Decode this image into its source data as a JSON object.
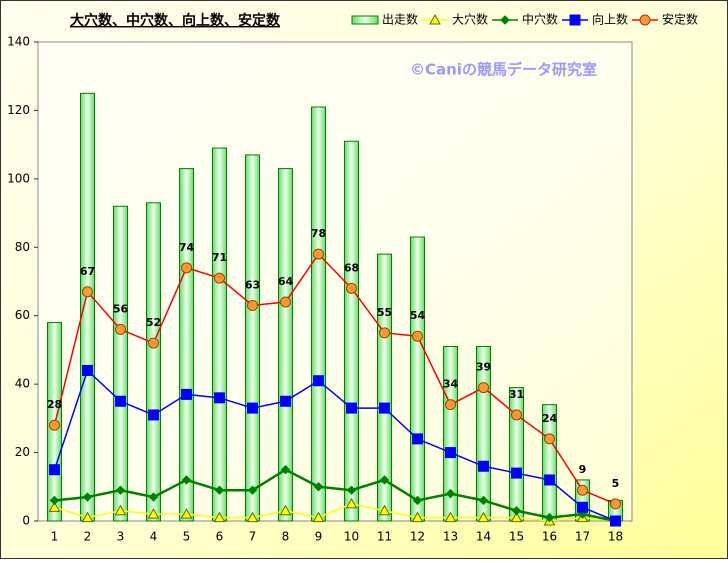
{
  "chart_data": {
    "type": "bar",
    "title": "大穴数、中穴数、向上数、安定数",
    "watermark": "©Caniの競馬データ研究室",
    "categories": [
      "1",
      "2",
      "3",
      "4",
      "5",
      "6",
      "7",
      "8",
      "9",
      "10",
      "11",
      "12",
      "13",
      "14",
      "15",
      "16",
      "17",
      "18"
    ],
    "series": [
      {
        "name": "出走数",
        "type": "bar",
        "color": "#008000",
        "values": [
          58,
          125,
          92,
          93,
          103,
          109,
          107,
          103,
          121,
          111,
          78,
          83,
          51,
          51,
          39,
          34,
          12,
          6
        ]
      },
      {
        "name": "大穴数",
        "type": "line",
        "marker": "triangle",
        "color": "#ffff00",
        "values": [
          4,
          1,
          3,
          2,
          2,
          1,
          1,
          3,
          1,
          5,
          3,
          1,
          1,
          1,
          1,
          0,
          1,
          0
        ]
      },
      {
        "name": "中穴数",
        "type": "line",
        "marker": "diamond",
        "color": "#008000",
        "values": [
          6,
          7,
          9,
          7,
          12,
          9,
          9,
          15,
          10,
          9,
          12,
          6,
          8,
          6,
          3,
          1,
          2,
          0
        ]
      },
      {
        "name": "向上数",
        "type": "line",
        "marker": "square",
        "color": "#0000ff",
        "values": [
          15,
          44,
          35,
          31,
          37,
          36,
          33,
          35,
          41,
          33,
          33,
          24,
          20,
          16,
          14,
          12,
          4,
          0
        ]
      },
      {
        "name": "安定数",
        "type": "line",
        "marker": "circle",
        "color": "#ff0000",
        "marker_color": "#ff9933",
        "data_labels": true,
        "values": [
          28,
          67,
          56,
          52,
          74,
          71,
          63,
          64,
          78,
          68,
          55,
          54,
          34,
          39,
          31,
          24,
          9,
          5
        ]
      }
    ],
    "ylim": [
      0,
      140
    ],
    "yticks": [
      0,
      20,
      40,
      60,
      80,
      100,
      120,
      140
    ],
    "grid": false,
    "legend": "top-right"
  }
}
